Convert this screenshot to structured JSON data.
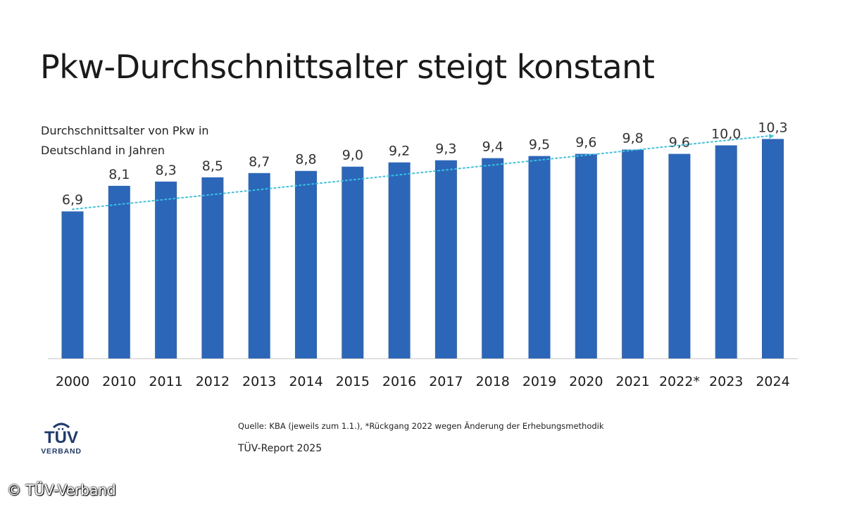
{
  "title": "Pkw-Durchschnittsalter steigt konstant",
  "subtitle_line1": "Durchschnittsalter von Pkw in",
  "subtitle_line2": "Deutschland in Jahren",
  "chart_data": {
    "type": "bar",
    "title": "Pkw-Durchschnittsalter steigt konstant",
    "ylabel": "Durchschnittsalter von Pkw in Deutschland in Jahren",
    "xlabel": "",
    "categories": [
      "2000",
      "2010",
      "2011",
      "2012",
      "2013",
      "2014",
      "2015",
      "2016",
      "2017",
      "2018",
      "2019",
      "2020",
      "2021",
      "2022*",
      "2023",
      "2024"
    ],
    "values": [
      6.9,
      8.1,
      8.3,
      8.5,
      8.7,
      8.8,
      9.0,
      9.2,
      9.3,
      9.4,
      9.5,
      9.6,
      9.8,
      9.6,
      10.0,
      10.3
    ],
    "value_labels": [
      "6,9",
      "8,1",
      "8,3",
      "8,5",
      "8,7",
      "8,8",
      "9,0",
      "9,2",
      "9,3",
      "9,4",
      "9,5",
      "9,6",
      "9,8",
      "9,6",
      "10,0",
      "10,3"
    ],
    "ylim": [
      0,
      11.7
    ],
    "grid": false,
    "trendline": {
      "style": "dotted-arrow",
      "from": 7.0,
      "to": 10.45
    },
    "bar_color": "#2b66b8",
    "trend_color": "#38c3e2"
  },
  "source": "Quelle: KBA (jeweils zum 1.1.), *Rückgang 2022 wegen Änderung der Erhebungsmethodik",
  "report": "TÜV-Report 2025",
  "logo": {
    "text_top": "TÜV",
    "text_bottom": "VERBAND",
    "color": "#1e3a6e"
  },
  "copyright": "© TÜV-Verband"
}
